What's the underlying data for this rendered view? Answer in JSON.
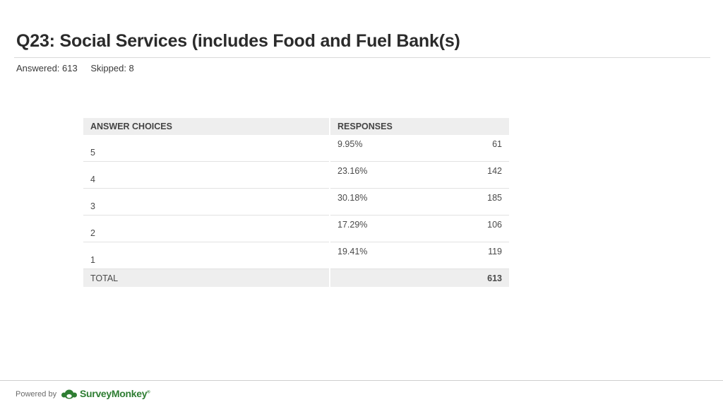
{
  "title": "Q23: Social Services (includes Food and Fuel Bank(s)",
  "stats": {
    "answered": "Answered: 613",
    "skipped": "Skipped: 8"
  },
  "table": {
    "headers": {
      "choices": "ANSWER CHOICES",
      "responses": "RESPONSES"
    },
    "rows": [
      {
        "choice": "5",
        "percent": "9.95%",
        "count": "61"
      },
      {
        "choice": "4",
        "percent": "23.16%",
        "count": "142"
      },
      {
        "choice": "3",
        "percent": "30.18%",
        "count": "185"
      },
      {
        "choice": "2",
        "percent": "17.29%",
        "count": "106"
      },
      {
        "choice": "1",
        "percent": "19.41%",
        "count": "119"
      }
    ],
    "total": {
      "label": "TOTAL",
      "count": "613"
    }
  },
  "footer": {
    "powered_by": "Powered by",
    "brand": "SurveyMonkey",
    "trademark": "®",
    "brand_color": "#2e7d32",
    "logo_icon": "surveymonkey-logo-icon"
  }
}
